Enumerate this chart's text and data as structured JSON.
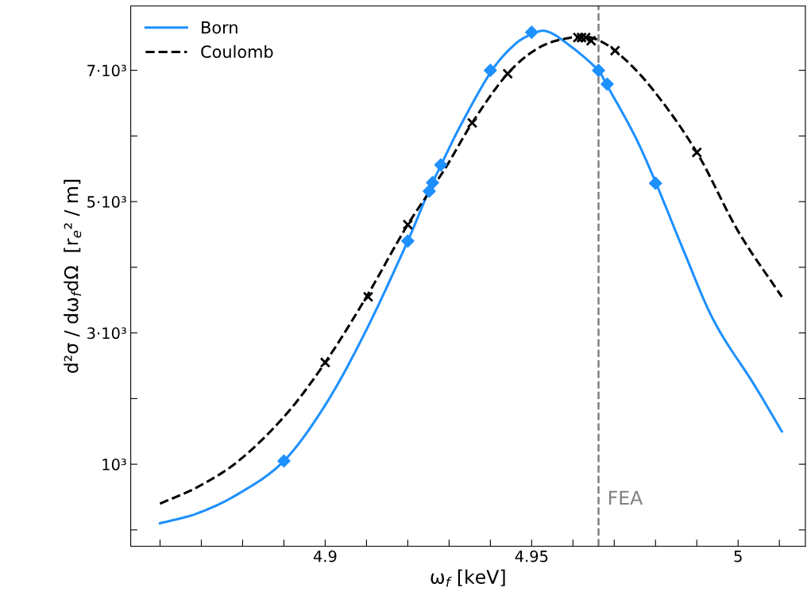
{
  "chart_data": {
    "type": "line",
    "xlabel": "ω$_{f}$ [keV]",
    "ylabel": "d²σ / dω$_{f}$dΩ  [r$_{e}$² / m]",
    "xlim": [
      4.8529,
      5.0163
    ],
    "ylim": [
      -250,
      7980
    ],
    "xticks": [
      {
        "value": 4.86,
        "label": null
      },
      {
        "value": 4.87,
        "label": null
      },
      {
        "value": 4.88,
        "label": null
      },
      {
        "value": 4.89,
        "label": null
      },
      {
        "value": 4.9,
        "label": "4.9"
      },
      {
        "value": 4.91,
        "label": null
      },
      {
        "value": 4.92,
        "label": null
      },
      {
        "value": 4.93,
        "label": null
      },
      {
        "value": 4.94,
        "label": null
      },
      {
        "value": 4.95,
        "label": "4.95"
      },
      {
        "value": 4.96,
        "label": null
      },
      {
        "value": 4.97,
        "label": null
      },
      {
        "value": 4.98,
        "label": null
      },
      {
        "value": 4.99,
        "label": null
      },
      {
        "value": 5.0,
        "label": "5"
      },
      {
        "value": 5.01,
        "label": null
      }
    ],
    "yticks": [
      {
        "value": 0,
        "label": null
      },
      {
        "value": 1000,
        "label": "10³"
      },
      {
        "value": 2000,
        "label": null
      },
      {
        "value": 3000,
        "label": "3·10³"
      },
      {
        "value": 4000,
        "label": null
      },
      {
        "value": 5000,
        "label": "5·10³"
      },
      {
        "value": 6000,
        "label": null
      },
      {
        "value": 7000,
        "label": "7·10³"
      }
    ],
    "grid": false,
    "legend": "top left",
    "series": [
      {
        "name": "Born",
        "color": "#1e90ff",
        "line_style": "solid",
        "marker": "none",
        "x": [
          4.86,
          4.869,
          4.879,
          4.89,
          4.9,
          4.9096,
          4.92,
          4.925,
          4.928,
          4.9327,
          4.9404,
          4.946,
          4.95,
          4.9533,
          4.9577,
          4.9662,
          4.968,
          4.975,
          4.98,
          4.9865,
          4.994,
          5.004,
          5.0106
        ],
        "values": [
          100,
          250,
          550,
          1050,
          1900,
          3000,
          4400,
          5150,
          5550,
          6150,
          7000,
          7400,
          7550,
          7600,
          7450,
          7000,
          6800,
          6000,
          5300,
          4300,
          3200,
          2200,
          1500
        ]
      },
      {
        "name": "Coulomb",
        "color": "#000000",
        "line_style": "dashed",
        "marker": "none",
        "x": [
          4.86,
          4.869,
          4.879,
          4.8904,
          4.9,
          4.91,
          4.92,
          4.929,
          4.9356,
          4.9442,
          4.9519,
          4.9596,
          4.9644,
          4.9702,
          4.9788,
          4.99,
          5.0,
          5.0106
        ],
        "values": [
          400,
          650,
          1050,
          1750,
          2550,
          3550,
          4650,
          5500,
          6200,
          6950,
          7350,
          7500,
          7500,
          7300,
          6750,
          5750,
          4550,
          3550
        ]
      },
      {
        "type": "scatter",
        "color": "#1e90ff",
        "marker": "diamond",
        "x": [
          4.89,
          4.92,
          4.9252,
          4.926,
          4.928,
          4.94,
          4.95,
          4.9662,
          4.9683,
          4.98
        ],
        "values": [
          1050,
          4400,
          5160,
          5290,
          5560,
          7000,
          7580,
          7000,
          6790,
          5280
        ]
      },
      {
        "type": "scatter",
        "color": "#000000",
        "marker": "cross",
        "x": [
          4.9,
          4.9104,
          4.92,
          4.9356,
          4.9442,
          4.9612,
          4.9621,
          4.9631,
          4.9644,
          4.9702,
          4.99
        ],
        "values": [
          2550,
          3550,
          4650,
          6200,
          6950,
          7500,
          7500,
          7500,
          7450,
          7300,
          5750
        ]
      }
    ],
    "ref_lines": [
      {
        "axis": "x",
        "value": 4.9662,
        "label": "FEA",
        "color": "#808080",
        "line_style": "dashed"
      }
    ]
  }
}
